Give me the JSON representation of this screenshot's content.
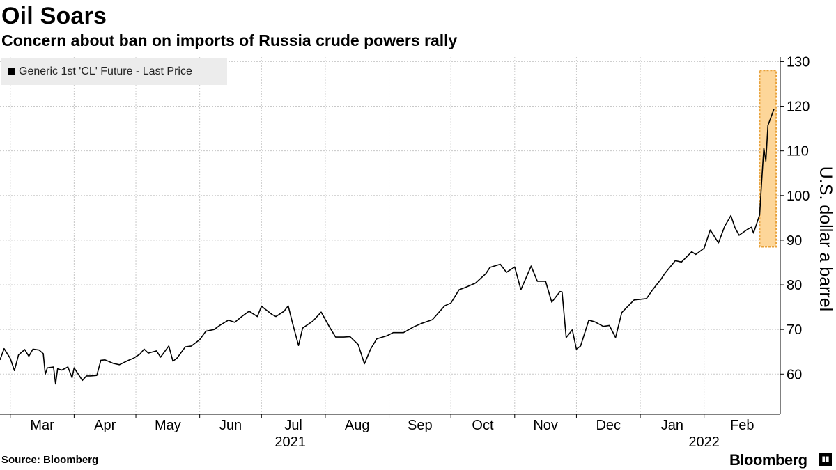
{
  "header": {
    "title": "Oil Soars",
    "subtitle": "Concern about ban on imports of Russia crude powers rally"
  },
  "footer": {
    "source": "Source: Bloomberg",
    "brand": "Bloomberg"
  },
  "colors": {
    "line": "#000000",
    "highlight_fill": "#fdd699",
    "highlight_border": "#e8a13a",
    "grid": "#c8c8c8",
    "legend_bg": "#ececec"
  },
  "chart_data": {
    "type": "line",
    "title": "Oil Soars",
    "subtitle": "Concern about ban on imports of Russia crude powers rally",
    "ylabel": "U.S. dollar a barrel",
    "ylim": [
      51,
      131
    ],
    "xlim": [
      "2021-02-24",
      "2022-03-10"
    ],
    "y_ticks": [
      60,
      70,
      80,
      90,
      100,
      110,
      120,
      130
    ],
    "x_tick_labels": [
      "Mar",
      "Apr",
      "May",
      "Jun",
      "Jul",
      "Aug",
      "Sep",
      "Oct",
      "Nov",
      "Dec",
      "Jan",
      "Feb"
    ],
    "x_tick_dates": [
      "2021-03-01",
      "2021-04-01",
      "2021-05-01",
      "2021-06-01",
      "2021-07-01",
      "2021-08-01",
      "2021-09-01",
      "2021-10-01",
      "2021-11-01",
      "2021-12-01",
      "2022-01-01",
      "2022-02-01"
    ],
    "year_labels": [
      {
        "label": "2021",
        "date": "2021-07-15"
      },
      {
        "label": "2022",
        "date": "2022-02-01"
      }
    ],
    "grid": true,
    "legend": {
      "position": "top-left",
      "entries": [
        "Generic 1st 'CL' Future - Last Price"
      ]
    },
    "highlight": {
      "x_start": "2022-02-28",
      "x_end": "2022-03-08",
      "y_start": 88.5,
      "y_end": 128
    },
    "series": [
      {
        "name": "Generic 1st 'CL' Future - Last Price",
        "x": [
          "2021-02-24",
          "2021-02-26",
          "2021-03-01",
          "2021-03-03",
          "2021-03-05",
          "2021-03-08",
          "2021-03-10",
          "2021-03-12",
          "2021-03-15",
          "2021-03-17",
          "2021-03-18",
          "2021-03-19",
          "2021-03-22",
          "2021-03-23",
          "2021-03-24",
          "2021-03-26",
          "2021-03-29",
          "2021-03-31",
          "2021-04-01",
          "2021-04-05",
          "2021-04-07",
          "2021-04-09",
          "2021-04-12",
          "2021-04-14",
          "2021-04-16",
          "2021-04-20",
          "2021-04-23",
          "2021-04-27",
          "2021-04-30",
          "2021-05-03",
          "2021-05-05",
          "2021-05-07",
          "2021-05-11",
          "2021-05-13",
          "2021-05-17",
          "2021-05-19",
          "2021-05-21",
          "2021-05-25",
          "2021-05-28",
          "2021-06-01",
          "2021-06-04",
          "2021-06-08",
          "2021-06-11",
          "2021-06-15",
          "2021-06-18",
          "2021-06-22",
          "2021-06-25",
          "2021-06-29",
          "2021-07-01",
          "2021-07-06",
          "2021-07-08",
          "2021-07-12",
          "2021-07-14",
          "2021-07-16",
          "2021-07-19",
          "2021-07-21",
          "2021-07-26",
          "2021-07-30",
          "2021-08-03",
          "2021-08-06",
          "2021-08-10",
          "2021-08-13",
          "2021-08-17",
          "2021-08-20",
          "2021-08-23",
          "2021-08-26",
          "2021-08-31",
          "2021-09-03",
          "2021-09-08",
          "2021-09-13",
          "2021-09-17",
          "2021-09-22",
          "2021-09-28",
          "2021-10-01",
          "2021-10-05",
          "2021-10-08",
          "2021-10-13",
          "2021-10-18",
          "2021-10-20",
          "2021-10-25",
          "2021-10-28",
          "2021-11-01",
          "2021-11-04",
          "2021-11-09",
          "2021-11-12",
          "2021-11-16",
          "2021-11-19",
          "2021-11-23",
          "2021-11-24",
          "2021-11-26",
          "2021-11-29",
          "2021-12-01",
          "2021-12-03",
          "2021-12-07",
          "2021-12-10",
          "2021-12-14",
          "2021-12-17",
          "2021-12-20",
          "2021-12-23",
          "2021-12-29",
          "2022-01-04",
          "2022-01-07",
          "2022-01-11",
          "2022-01-13",
          "2022-01-18",
          "2022-01-21",
          "2022-01-26",
          "2022-01-28",
          "2022-02-01",
          "2022-02-04",
          "2022-02-08",
          "2022-02-11",
          "2022-02-14",
          "2022-02-16",
          "2022-02-18",
          "2022-02-22",
          "2022-02-24",
          "2022-02-25",
          "2022-02-28",
          "2022-03-01",
          "2022-03-02",
          "2022-03-03",
          "2022-03-04",
          "2022-03-07"
        ],
        "values": [
          63.2,
          65.7,
          63.5,
          60.8,
          64.3,
          65.5,
          64.0,
          65.6,
          65.4,
          64.6,
          60.0,
          61.4,
          61.6,
          57.8,
          61.2,
          60.9,
          61.6,
          59.2,
          61.4,
          58.6,
          59.6,
          59.6,
          59.7,
          63.1,
          63.2,
          62.4,
          62.1,
          63.0,
          63.6,
          64.5,
          65.6,
          64.7,
          65.2,
          63.8,
          66.3,
          62.9,
          63.6,
          66.1,
          66.3,
          67.7,
          69.6,
          70.0,
          71.0,
          72.1,
          71.6,
          73.1,
          74.1,
          72.9,
          75.2,
          73.4,
          72.9,
          74.1,
          75.3,
          71.6,
          66.4,
          70.3,
          71.9,
          73.9,
          70.6,
          68.3,
          68.3,
          68.4,
          66.6,
          62.3,
          65.6,
          67.9,
          68.6,
          69.3,
          69.3,
          70.6,
          71.4,
          72.2,
          75.3,
          75.9,
          78.9,
          79.4,
          80.4,
          82.5,
          83.9,
          84.6,
          82.8,
          84.0,
          78.9,
          84.2,
          80.8,
          80.8,
          76.1,
          78.5,
          78.4,
          68.2,
          69.9,
          65.6,
          66.3,
          72.1,
          71.7,
          70.7,
          70.9,
          68.2,
          73.8,
          76.6,
          76.9,
          78.9,
          81.2,
          82.6,
          85.4,
          85.1,
          87.4,
          86.8,
          88.2,
          92.3,
          89.4,
          93.1,
          95.5,
          92.8,
          91.1,
          92.4,
          92.9,
          91.6,
          95.7,
          103.4,
          110.6,
          107.7,
          115.7,
          119.4
        ]
      }
    ]
  }
}
